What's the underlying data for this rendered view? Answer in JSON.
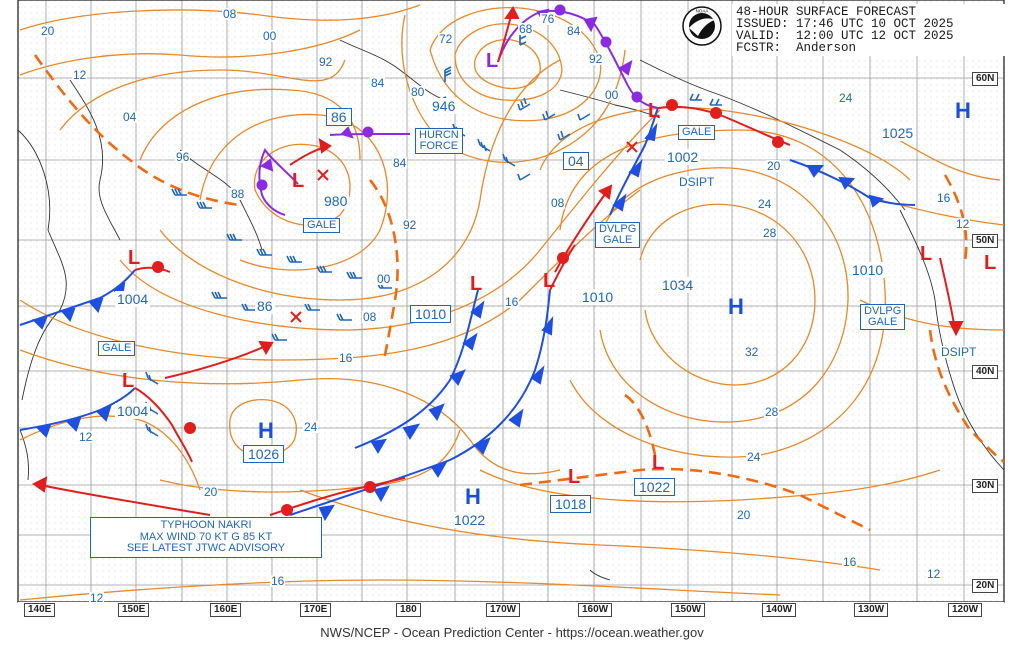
{
  "header": {
    "title": "48-HOUR SURFACE FORECAST",
    "issued_label": "ISSUED:",
    "issued_value": "17:46 UTC 10 OCT 2025",
    "valid_label": "VALID:",
    "valid_value": "12:00 UTC 12 OCT 2025",
    "fcstr_label": "FCSTR:",
    "fcstr_value": "Anderson",
    "logo": "noaa-logo"
  },
  "footer": "NWS/NCEP - Ocean Prediction Center - https://ocean.weather.gov",
  "grid": {
    "longitude_labels": [
      "140E",
      "150E",
      "160E",
      "170E",
      "180",
      "170W",
      "160W",
      "150W",
      "140W",
      "130W",
      "120W"
    ],
    "latitude_labels": [
      "60N",
      "50N",
      "40N",
      "30N",
      "20N"
    ]
  },
  "pressure_systems": [
    {
      "type": "H",
      "pressure": "1025"
    },
    {
      "type": "H",
      "pressure": "1034"
    },
    {
      "type": "H",
      "pressure": "1026"
    },
    {
      "type": "H",
      "pressure": "1022"
    },
    {
      "type": "L",
      "pressure": "946"
    },
    {
      "type": "L",
      "pressure": "980"
    },
    {
      "type": "L",
      "pressure": "1004"
    },
    {
      "type": "L",
      "pressure": "1004"
    },
    {
      "type": "L",
      "pressure": "1010"
    },
    {
      "type": "L",
      "pressure": "1010"
    },
    {
      "type": "L",
      "pressure": "1002"
    },
    {
      "type": "L",
      "pressure": "1010"
    },
    {
      "type": "L",
      "pressure": "1018"
    },
    {
      "type": "L",
      "pressure": "1022"
    },
    {
      "type": "L",
      "pressure": "86"
    },
    {
      "type": "L",
      "pressure": "86"
    },
    {
      "type": "L",
      "pressure": "04"
    }
  ],
  "warnings": {
    "hurricane_force": [
      "HURCN",
      "FORCE"
    ],
    "gale": "GALE",
    "developing_gale": [
      "DVLPG",
      "GALE"
    ],
    "dissipating": "DSIPT"
  },
  "typhoon": {
    "line1": "TYPHOON NAKRI",
    "line2": "MAX WIND 70 KT G 85 KT",
    "line3": "SEE LATEST JTWC ADVISORY"
  },
  "isobar_labels": [
    "20",
    "12",
    "04",
    "96",
    "88",
    "08",
    "00",
    "92",
    "84",
    "80",
    "72",
    "68",
    "76",
    "84",
    "92",
    "00",
    "08",
    "16",
    "24",
    "32",
    "28",
    "24",
    "20",
    "16",
    "12",
    "08",
    "00",
    "92",
    "84",
    "16",
    "20",
    "12",
    "16",
    "12",
    "24",
    "28",
    "20",
    "24",
    "16",
    "12"
  ],
  "colors": {
    "isobar": "#e8892a",
    "cold_front": "#1f4fe0",
    "warm_front": "#e01e1e",
    "occluded_front": "#8a2be2",
    "trough": "#f06a12",
    "label": "#1f66b8",
    "grid": "#999999"
  }
}
